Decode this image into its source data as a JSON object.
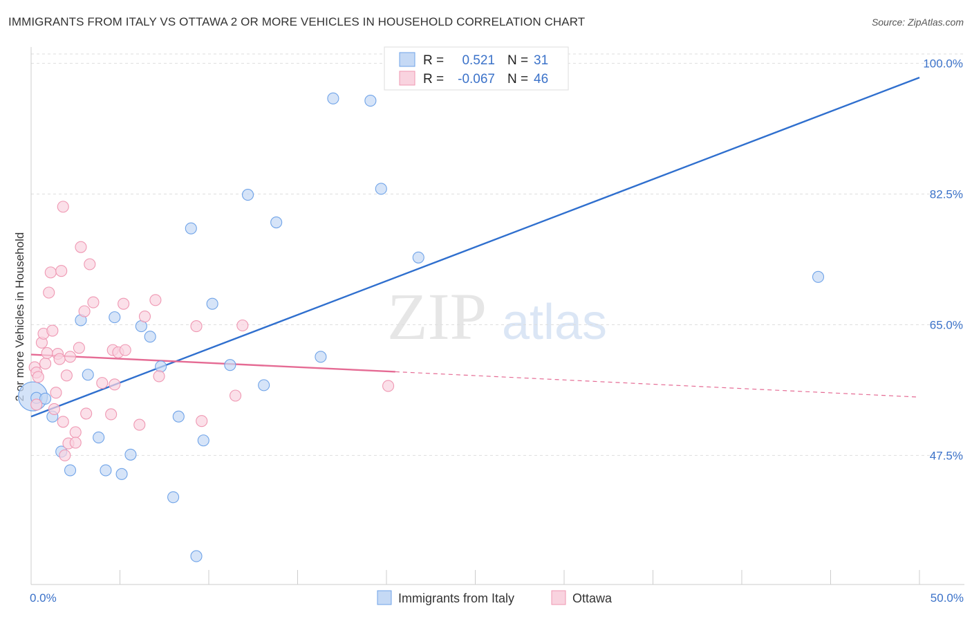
{
  "title": "IMMIGRANTS FROM ITALY VS OTTAWA 2 OR MORE VEHICLES IN HOUSEHOLD CORRELATION CHART",
  "source": "Source: ZipAtlas.com",
  "watermark": {
    "zip": "ZIP",
    "atlas": "atlas"
  },
  "colors": {
    "blue": "#6fa3e8",
    "blue_fill": "#c5d9f5",
    "blue_line": "#2f6fce",
    "pink": "#ef97b2",
    "pink_fill": "#f9d3df",
    "pink_line": "#e56b94",
    "tick_text": "#3b72c9",
    "grid": "#dddddd"
  },
  "legend": {
    "rows": [
      {
        "r_label": "R =",
        "r_value": "0.521",
        "n_label": "N =",
        "n_value": "31",
        "color": "blue"
      },
      {
        "r_label": "R =",
        "r_value": "-0.067",
        "n_label": "N =",
        "n_value": "46",
        "color": "pink"
      }
    ]
  },
  "chart_data": {
    "type": "scatter",
    "title": "IMMIGRANTS FROM ITALY VS OTTAWA 2 OR MORE VEHICLES IN HOUSEHOLD CORRELATION CHART",
    "xlabel": "",
    "ylabel": "2 or more Vehicles in Household",
    "xlim": [
      0,
      50
    ],
    "ylim": [
      31.6,
      102.0
    ],
    "x_tick_labels": [
      {
        "value": 0,
        "label": "0.0%"
      },
      {
        "value": 50,
        "label": "50.0%"
      }
    ],
    "y_tick_labels": [
      {
        "value": 100.0,
        "label": "100.0%"
      },
      {
        "value": 82.5,
        "label": "82.5%"
      },
      {
        "value": 65.0,
        "label": "65.0%"
      },
      {
        "value": 47.5,
        "label": "47.5%"
      }
    ],
    "grid": true,
    "legend_position": "top-center",
    "series": [
      {
        "name": "Immigrants from Italy",
        "color": "blue",
        "points": [
          [
            0.3,
            55.2
          ],
          [
            0.8,
            55.1
          ],
          [
            1.2,
            52.7
          ],
          [
            1.7,
            48.0
          ],
          [
            2.2,
            45.5
          ],
          [
            2.8,
            65.6
          ],
          [
            3.2,
            58.3
          ],
          [
            3.8,
            49.9
          ],
          [
            4.2,
            45.5
          ],
          [
            4.7,
            66.0
          ],
          [
            5.1,
            45.0
          ],
          [
            5.6,
            47.6
          ],
          [
            6.2,
            64.8
          ],
          [
            6.7,
            63.4
          ],
          [
            7.3,
            59.4
          ],
          [
            8.0,
            41.9
          ],
          [
            8.3,
            52.7
          ],
          [
            9.0,
            77.9
          ],
          [
            9.3,
            34.0
          ],
          [
            9.7,
            49.5
          ],
          [
            10.2,
            67.8
          ],
          [
            11.2,
            59.6
          ],
          [
            12.2,
            82.4
          ],
          [
            13.1,
            56.9
          ],
          [
            13.8,
            78.7
          ],
          [
            16.3,
            60.7
          ],
          [
            17.0,
            95.3
          ],
          [
            19.1,
            95.0
          ],
          [
            19.7,
            83.2
          ],
          [
            21.8,
            74.0
          ],
          [
            44.3,
            71.4
          ]
        ],
        "trend": {
          "x": [
            0,
            50
          ],
          "y": [
            52.7,
            98.1
          ]
        }
      },
      {
        "name": "Ottawa",
        "color": "pink",
        "points": [
          [
            0.2,
            59.3
          ],
          [
            0.3,
            54.3
          ],
          [
            0.3,
            58.6
          ],
          [
            0.4,
            58.0
          ],
          [
            0.6,
            62.6
          ],
          [
            0.7,
            63.8
          ],
          [
            0.8,
            59.8
          ],
          [
            0.9,
            61.2
          ],
          [
            1.0,
            69.3
          ],
          [
            1.1,
            72.0
          ],
          [
            1.2,
            64.2
          ],
          [
            1.3,
            53.7
          ],
          [
            1.4,
            55.9
          ],
          [
            1.5,
            61.1
          ],
          [
            1.6,
            60.4
          ],
          [
            1.7,
            72.2
          ],
          [
            1.8,
            52.0
          ],
          [
            1.8,
            80.8
          ],
          [
            1.9,
            47.5
          ],
          [
            2.0,
            58.2
          ],
          [
            2.1,
            49.1
          ],
          [
            2.2,
            60.7
          ],
          [
            2.5,
            50.6
          ],
          [
            2.5,
            49.2
          ],
          [
            2.7,
            61.9
          ],
          [
            2.8,
            75.4
          ],
          [
            3.0,
            66.8
          ],
          [
            3.1,
            53.1
          ],
          [
            3.3,
            73.1
          ],
          [
            3.5,
            68.0
          ],
          [
            4.0,
            57.2
          ],
          [
            4.5,
            53.0
          ],
          [
            4.6,
            61.6
          ],
          [
            4.7,
            57.0
          ],
          [
            4.9,
            61.3
          ],
          [
            5.2,
            67.8
          ],
          [
            5.3,
            61.6
          ],
          [
            6.1,
            51.6
          ],
          [
            6.4,
            66.1
          ],
          [
            7.0,
            68.3
          ],
          [
            7.2,
            58.1
          ],
          [
            9.3,
            64.8
          ],
          [
            9.6,
            52.1
          ],
          [
            11.5,
            55.5
          ],
          [
            11.9,
            64.9
          ],
          [
            20.1,
            56.8
          ]
        ],
        "trend": {
          "x": [
            0,
            20.5
          ],
          "y": [
            61.0,
            58.7
          ]
        },
        "trend_extension": {
          "x": [
            20.5,
            50
          ],
          "y": [
            58.7,
            55.3
          ]
        }
      }
    ],
    "big_points": [
      {
        "series": "Immigrants from Italy",
        "x": 0.1,
        "y": 55.4
      }
    ]
  },
  "bottom_legend": [
    {
      "label": "Immigrants from Italy",
      "color": "blue"
    },
    {
      "label": "Ottawa",
      "color": "pink"
    }
  ]
}
